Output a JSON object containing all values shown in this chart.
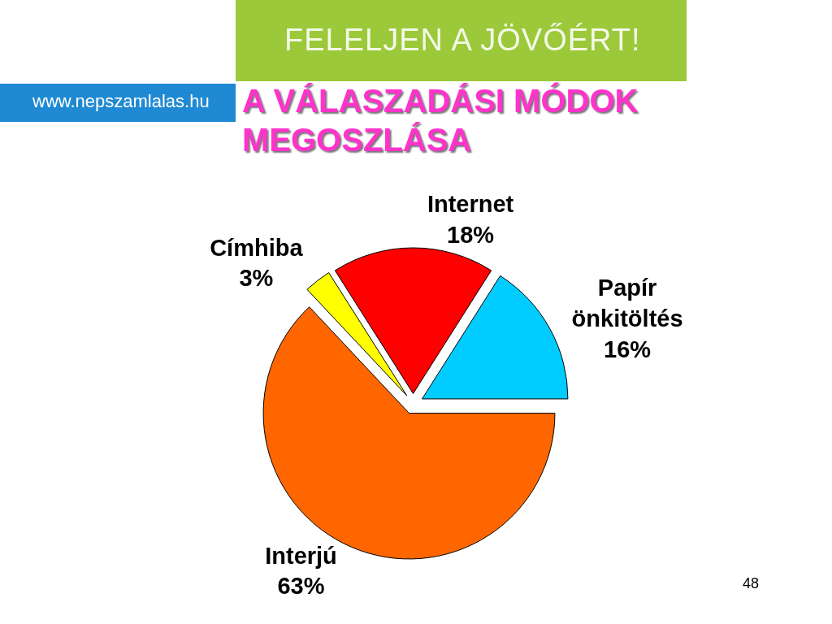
{
  "chart_data": {
    "type": "pie",
    "title": "A VÁLASZADÁSI MÓDOK MEGOSZLÁSA",
    "categories": [
      "Internet",
      "Papír önkitöltés",
      "Interjú",
      "Címhiba"
    ],
    "values": [
      18,
      16,
      63,
      3
    ],
    "value_labels": [
      "18%",
      "16%",
      "63%",
      "3%"
    ],
    "colors": [
      "#ff0000",
      "#00ccff",
      "#ff6600",
      "#ffff00"
    ],
    "annotations": [
      "FELELJEN A JÖVŐÉRT!",
      "www.nepszamlalas.hu",
      "48"
    ]
  }
}
